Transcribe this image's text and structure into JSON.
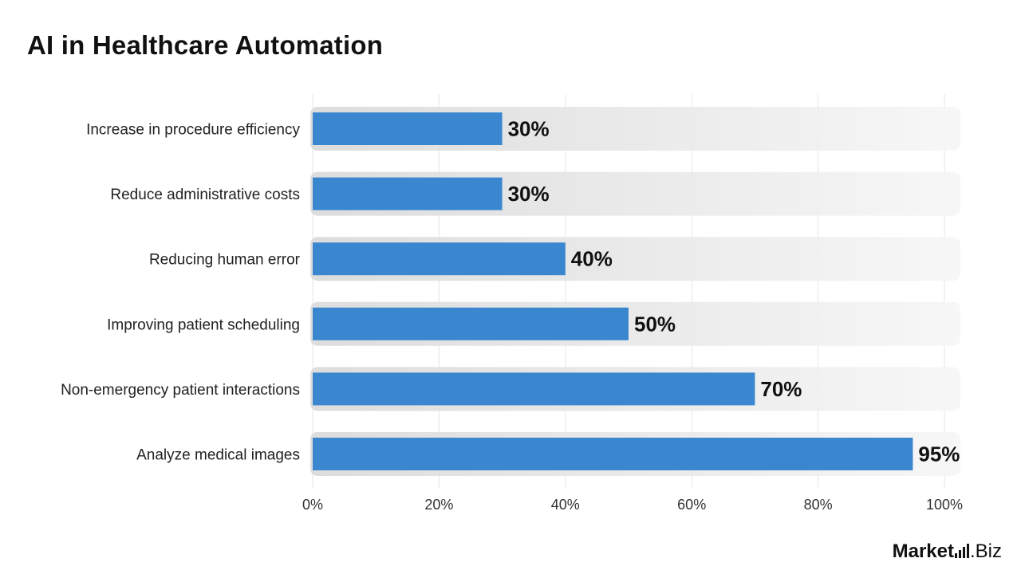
{
  "chart_data": {
    "type": "bar",
    "orientation": "horizontal",
    "title": "AI in Healthcare Automation",
    "categories": [
      "Increase in procedure efficiency",
      "Reduce administrative costs",
      "Reducing human error",
      "Improving patient scheduling",
      "Non-emergency patient interactions",
      "Analyze medical images"
    ],
    "values": [
      30,
      30,
      40,
      50,
      70,
      95
    ],
    "value_labels": [
      "30%",
      "30%",
      "40%",
      "50%",
      "70%",
      "95%"
    ],
    "xlim": [
      0,
      100
    ],
    "x_ticks": [
      0,
      20,
      40,
      60,
      80,
      100
    ],
    "x_tick_labels": [
      "0%",
      "20%",
      "40%",
      "60%",
      "80%",
      "100%"
    ],
    "grid": true,
    "bar_color": "#3a87d0",
    "track_color": "#e2e2e2"
  },
  "branding": {
    "logo_prefix": "Market",
    "logo_suffix": ".Biz"
  }
}
